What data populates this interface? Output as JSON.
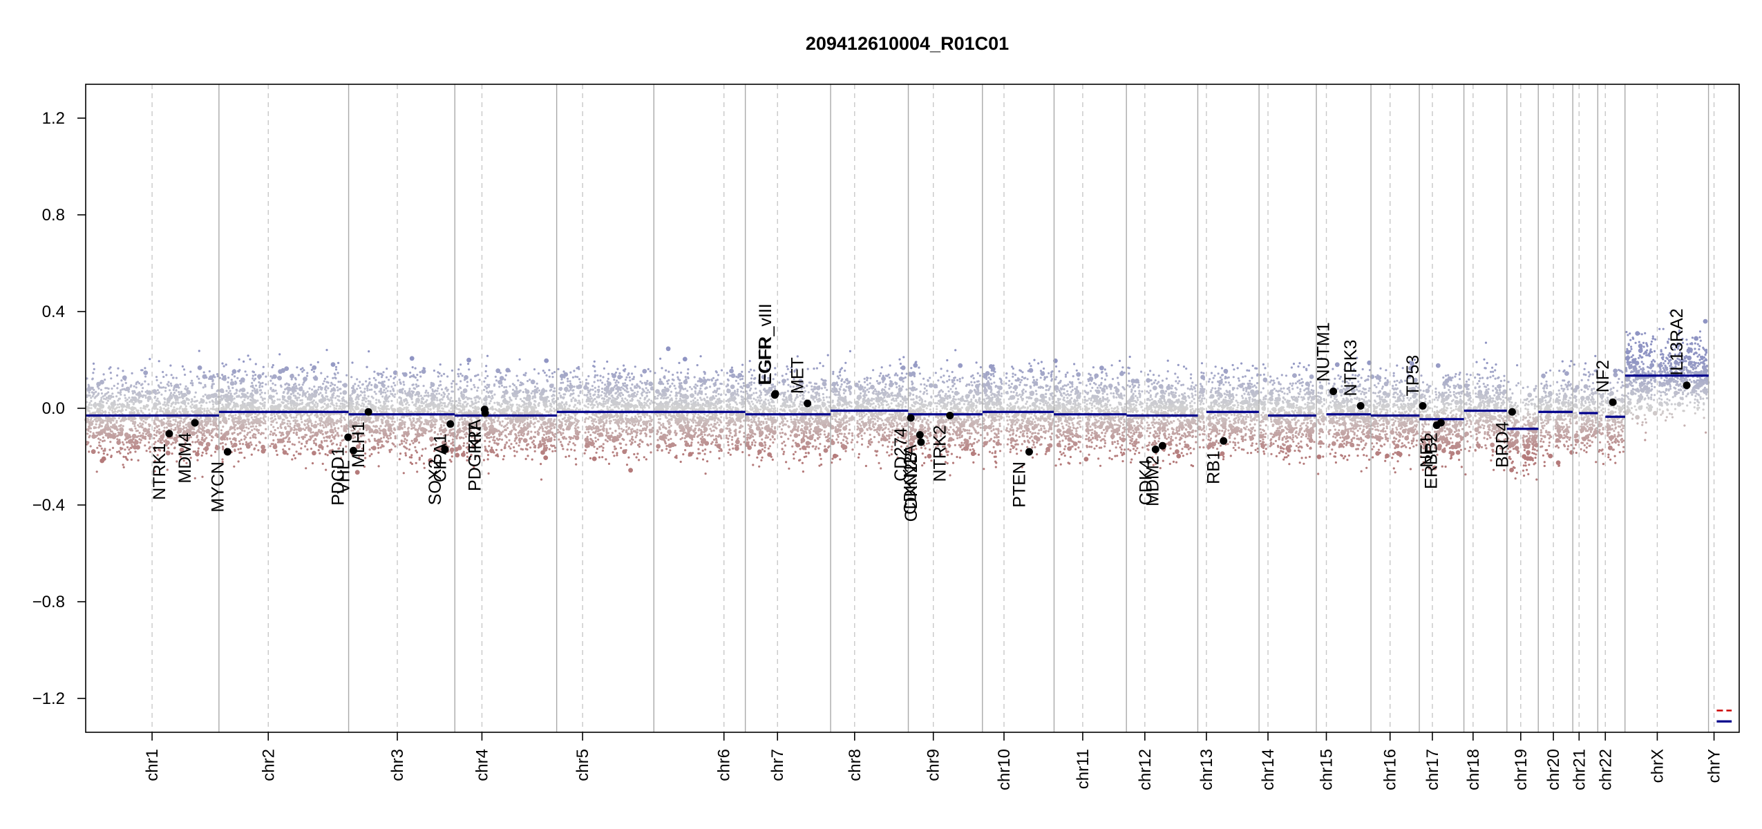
{
  "chart_data": {
    "type": "scatter",
    "title": "209412610004_R01C01",
    "xlabel": "",
    "ylabel": "",
    "ylim": [
      -1.34,
      1.34
    ],
    "yticks": [
      -1.2,
      -0.8,
      -0.4,
      0.0,
      0.4,
      0.8,
      1.2
    ],
    "ytick_labels": [
      "−1.2",
      "−0.8",
      "−0.4",
      "0.0",
      "0.4",
      "0.8",
      "1.2"
    ],
    "grid": false,
    "legend": "none",
    "colors": {
      "positive": "#8f94c3",
      "neutral": "#d2d2d2",
      "negative": "#b47a7a",
      "segment": "#00008b",
      "gene_dot": "#000000",
      "boundary": "#a9a9a9",
      "centromere": "#c8c8c8",
      "chrY_dashed": "#cc0000"
    },
    "chromosomes": [
      {
        "name": "chr1",
        "start": 0.0,
        "end": 248.9,
        "centromere": 124.0
      },
      {
        "name": "chr2",
        "start": 248.9,
        "end": 491.1,
        "centromere": 341.0
      },
      {
        "name": "chr3",
        "start": 491.1,
        "end": 689.4,
        "centromere": 582.0
      },
      {
        "name": "chr4",
        "start": 689.4,
        "end": 879.6,
        "centromere": 740.0
      },
      {
        "name": "chr5",
        "start": 879.6,
        "end": 1061.1,
        "centromere": 928.0
      },
      {
        "name": "chr6",
        "start": 1061.1,
        "end": 1231.9,
        "centromere": 1192.0
      },
      {
        "name": "chr7",
        "start": 1231.9,
        "end": 1391.2,
        "centromere": 1292.0
      },
      {
        "name": "chr8",
        "start": 1391.2,
        "end": 1536.3,
        "centromere": 1436.0
      },
      {
        "name": "chr9",
        "start": 1536.3,
        "end": 1674.7,
        "centromere": 1583.0
      },
      {
        "name": "chr10",
        "start": 1674.7,
        "end": 1808.5,
        "centromere": 1715.0
      },
      {
        "name": "chr11",
        "start": 1808.5,
        "end": 1943.6,
        "centromere": 1862.0
      },
      {
        "name": "chr12",
        "start": 1943.6,
        "end": 2076.9,
        "centromere": 1978.0
      },
      {
        "name": "chr13",
        "start": 2076.9,
        "end": 2191.3,
        "centromere": 2093.0
      },
      {
        "name": "chr14",
        "start": 2191.3,
        "end": 2298.3,
        "centromere": 2208.0
      },
      {
        "name": "chr15",
        "start": 2298.3,
        "end": 2400.3,
        "centromere": 2317.0
      },
      {
        "name": "chr16",
        "start": 2400.3,
        "end": 2490.6,
        "centromere": 2436.0
      },
      {
        "name": "chr17",
        "start": 2490.6,
        "end": 2573.9,
        "centromere": 2515.0
      },
      {
        "name": "chr18",
        "start": 2573.9,
        "end": 2654.2,
        "centromere": 2591.0
      },
      {
        "name": "chr19",
        "start": 2654.2,
        "end": 2712.8,
        "centromere": 2680.0
      },
      {
        "name": "chr20",
        "start": 2712.8,
        "end": 2777.2,
        "centromere": 2741.0
      },
      {
        "name": "chr21",
        "start": 2777.2,
        "end": 2823.9,
        "centromere": 2789.0
      },
      {
        "name": "chr22",
        "start": 2823.9,
        "end": 2874.7,
        "centromere": 2838.0
      },
      {
        "name": "chrX",
        "start": 2874.7,
        "end": 3030.7,
        "centromere": 2935.0
      },
      {
        "name": "chrY",
        "start": 3030.7,
        "end": 3088.0,
        "centromere": 3041.0
      }
    ],
    "segments": [
      {
        "chr": "chr1",
        "x0": 0,
        "x1": 249,
        "y": -0.03
      },
      {
        "chr": "chr2",
        "x0": 249,
        "x1": 491,
        "y": -0.015
      },
      {
        "chr": "chr3",
        "x0": 491,
        "x1": 689,
        "y": -0.025
      },
      {
        "chr": "chr4",
        "x0": 689,
        "x1": 880,
        "y": -0.03
      },
      {
        "chr": "chr5",
        "x0": 880,
        "x1": 1061,
        "y": -0.015
      },
      {
        "chr": "chr6",
        "x0": 1061,
        "x1": 1232,
        "y": -0.015
      },
      {
        "chr": "chr7",
        "x0": 1232,
        "x1": 1391,
        "y": -0.025
      },
      {
        "chr": "chr8",
        "x0": 1391,
        "x1": 1536,
        "y": -0.01
      },
      {
        "chr": "chr9",
        "x0": 1536,
        "x1": 1675,
        "y": -0.025
      },
      {
        "chr": "chr10",
        "x0": 1675,
        "x1": 1808,
        "y": -0.015
      },
      {
        "chr": "chr11",
        "x0": 1808,
        "x1": 1944,
        "y": -0.025
      },
      {
        "chr": "chr12",
        "x0": 1944,
        "x1": 2077,
        "y": -0.03
      },
      {
        "chr": "chr13",
        "x0": 2093,
        "x1": 2191,
        "y": -0.015
      },
      {
        "chr": "chr14",
        "x0": 2208,
        "x1": 2298,
        "y": -0.03
      },
      {
        "chr": "chr15",
        "x0": 2317,
        "x1": 2400,
        "y": -0.025
      },
      {
        "chr": "chr16",
        "x0": 2400,
        "x1": 2491,
        "y": -0.03
      },
      {
        "chr": "chr17",
        "x0": 2491,
        "x1": 2574,
        "y": -0.045
      },
      {
        "chr": "chr18",
        "x0": 2574,
        "x1": 2654,
        "y": -0.01
      },
      {
        "chr": "chr19",
        "x0": 2654,
        "x1": 2713,
        "y": -0.085
      },
      {
        "chr": "chr20",
        "x0": 2713,
        "x1": 2777,
        "y": -0.015
      },
      {
        "chr": "chr21",
        "x0": 2789,
        "x1": 2824,
        "y": -0.02
      },
      {
        "chr": "chr22",
        "x0": 2838,
        "x1": 2875,
        "y": -0.035
      },
      {
        "chr": "chrX",
        "x0": 2875,
        "x1": 3031,
        "y": 0.135
      },
      {
        "chr": "chrY",
        "x0": 3046,
        "x1": 3074,
        "y": -1.295
      },
      {
        "chr": "chrY",
        "x0": 3046,
        "x1": 3074,
        "y": -1.25,
        "dashed": true
      }
    ],
    "genes": [
      {
        "name": "NTRK1",
        "x": 156,
        "y": -0.105
      },
      {
        "name": "MDM4",
        "x": 204,
        "y": -0.06
      },
      {
        "name": "MYCN",
        "x": 265,
        "y": -0.18
      },
      {
        "name": "PDCD1",
        "x": 490,
        "y": -0.12
      },
      {
        "name": "VHL",
        "x": 500,
        "y": -0.175
      },
      {
        "name": "MLH1",
        "x": 528,
        "y": -0.015
      },
      {
        "name": "SOX2",
        "x": 671,
        "y": -0.17
      },
      {
        "name": "CIPA1",
        "x": 681,
        "y": -0.065
      },
      {
        "name": "PDGFRA",
        "x": 745,
        "y": -0.005
      },
      {
        "name": "KIT",
        "x": 746,
        "y": -0.02
      },
      {
        "name": "EGFR",
        "x": 1287,
        "y": 0.055
      },
      {
        "name": "EGFR_vIII",
        "x": 1288,
        "y": 0.06
      },
      {
        "name": "MET",
        "x": 1348,
        "y": 0.02
      },
      {
        "name": "CD274",
        "x": 1541,
        "y": -0.04
      },
      {
        "name": "CDKN2A",
        "x": 1558,
        "y": -0.11
      },
      {
        "name": "CDKN2B",
        "x": 1560,
        "y": -0.14
      },
      {
        "name": "NTRK2",
        "x": 1614,
        "y": -0.03
      },
      {
        "name": "PTEN",
        "x": 1762,
        "y": -0.18
      },
      {
        "name": "CDK4",
        "x": 1998,
        "y": -0.17
      },
      {
        "name": "MDM2",
        "x": 2011,
        "y": -0.155
      },
      {
        "name": "RB1",
        "x": 2125,
        "y": -0.135
      },
      {
        "name": "NUTM1",
        "x": 2330,
        "y": 0.07
      },
      {
        "name": "NTRK3",
        "x": 2381,
        "y": 0.01
      },
      {
        "name": "TP53",
        "x": 2497,
        "y": 0.01
      },
      {
        "name": "NF1",
        "x": 2523,
        "y": -0.07
      },
      {
        "name": "ERBB2",
        "x": 2531,
        "y": -0.06
      },
      {
        "name": "BRD4",
        "x": 2664,
        "y": -0.015
      },
      {
        "name": "NF2",
        "x": 2852,
        "y": 0.025
      },
      {
        "name": "IL13RA2",
        "x": 2990,
        "y": 0.095
      }
    ]
  }
}
